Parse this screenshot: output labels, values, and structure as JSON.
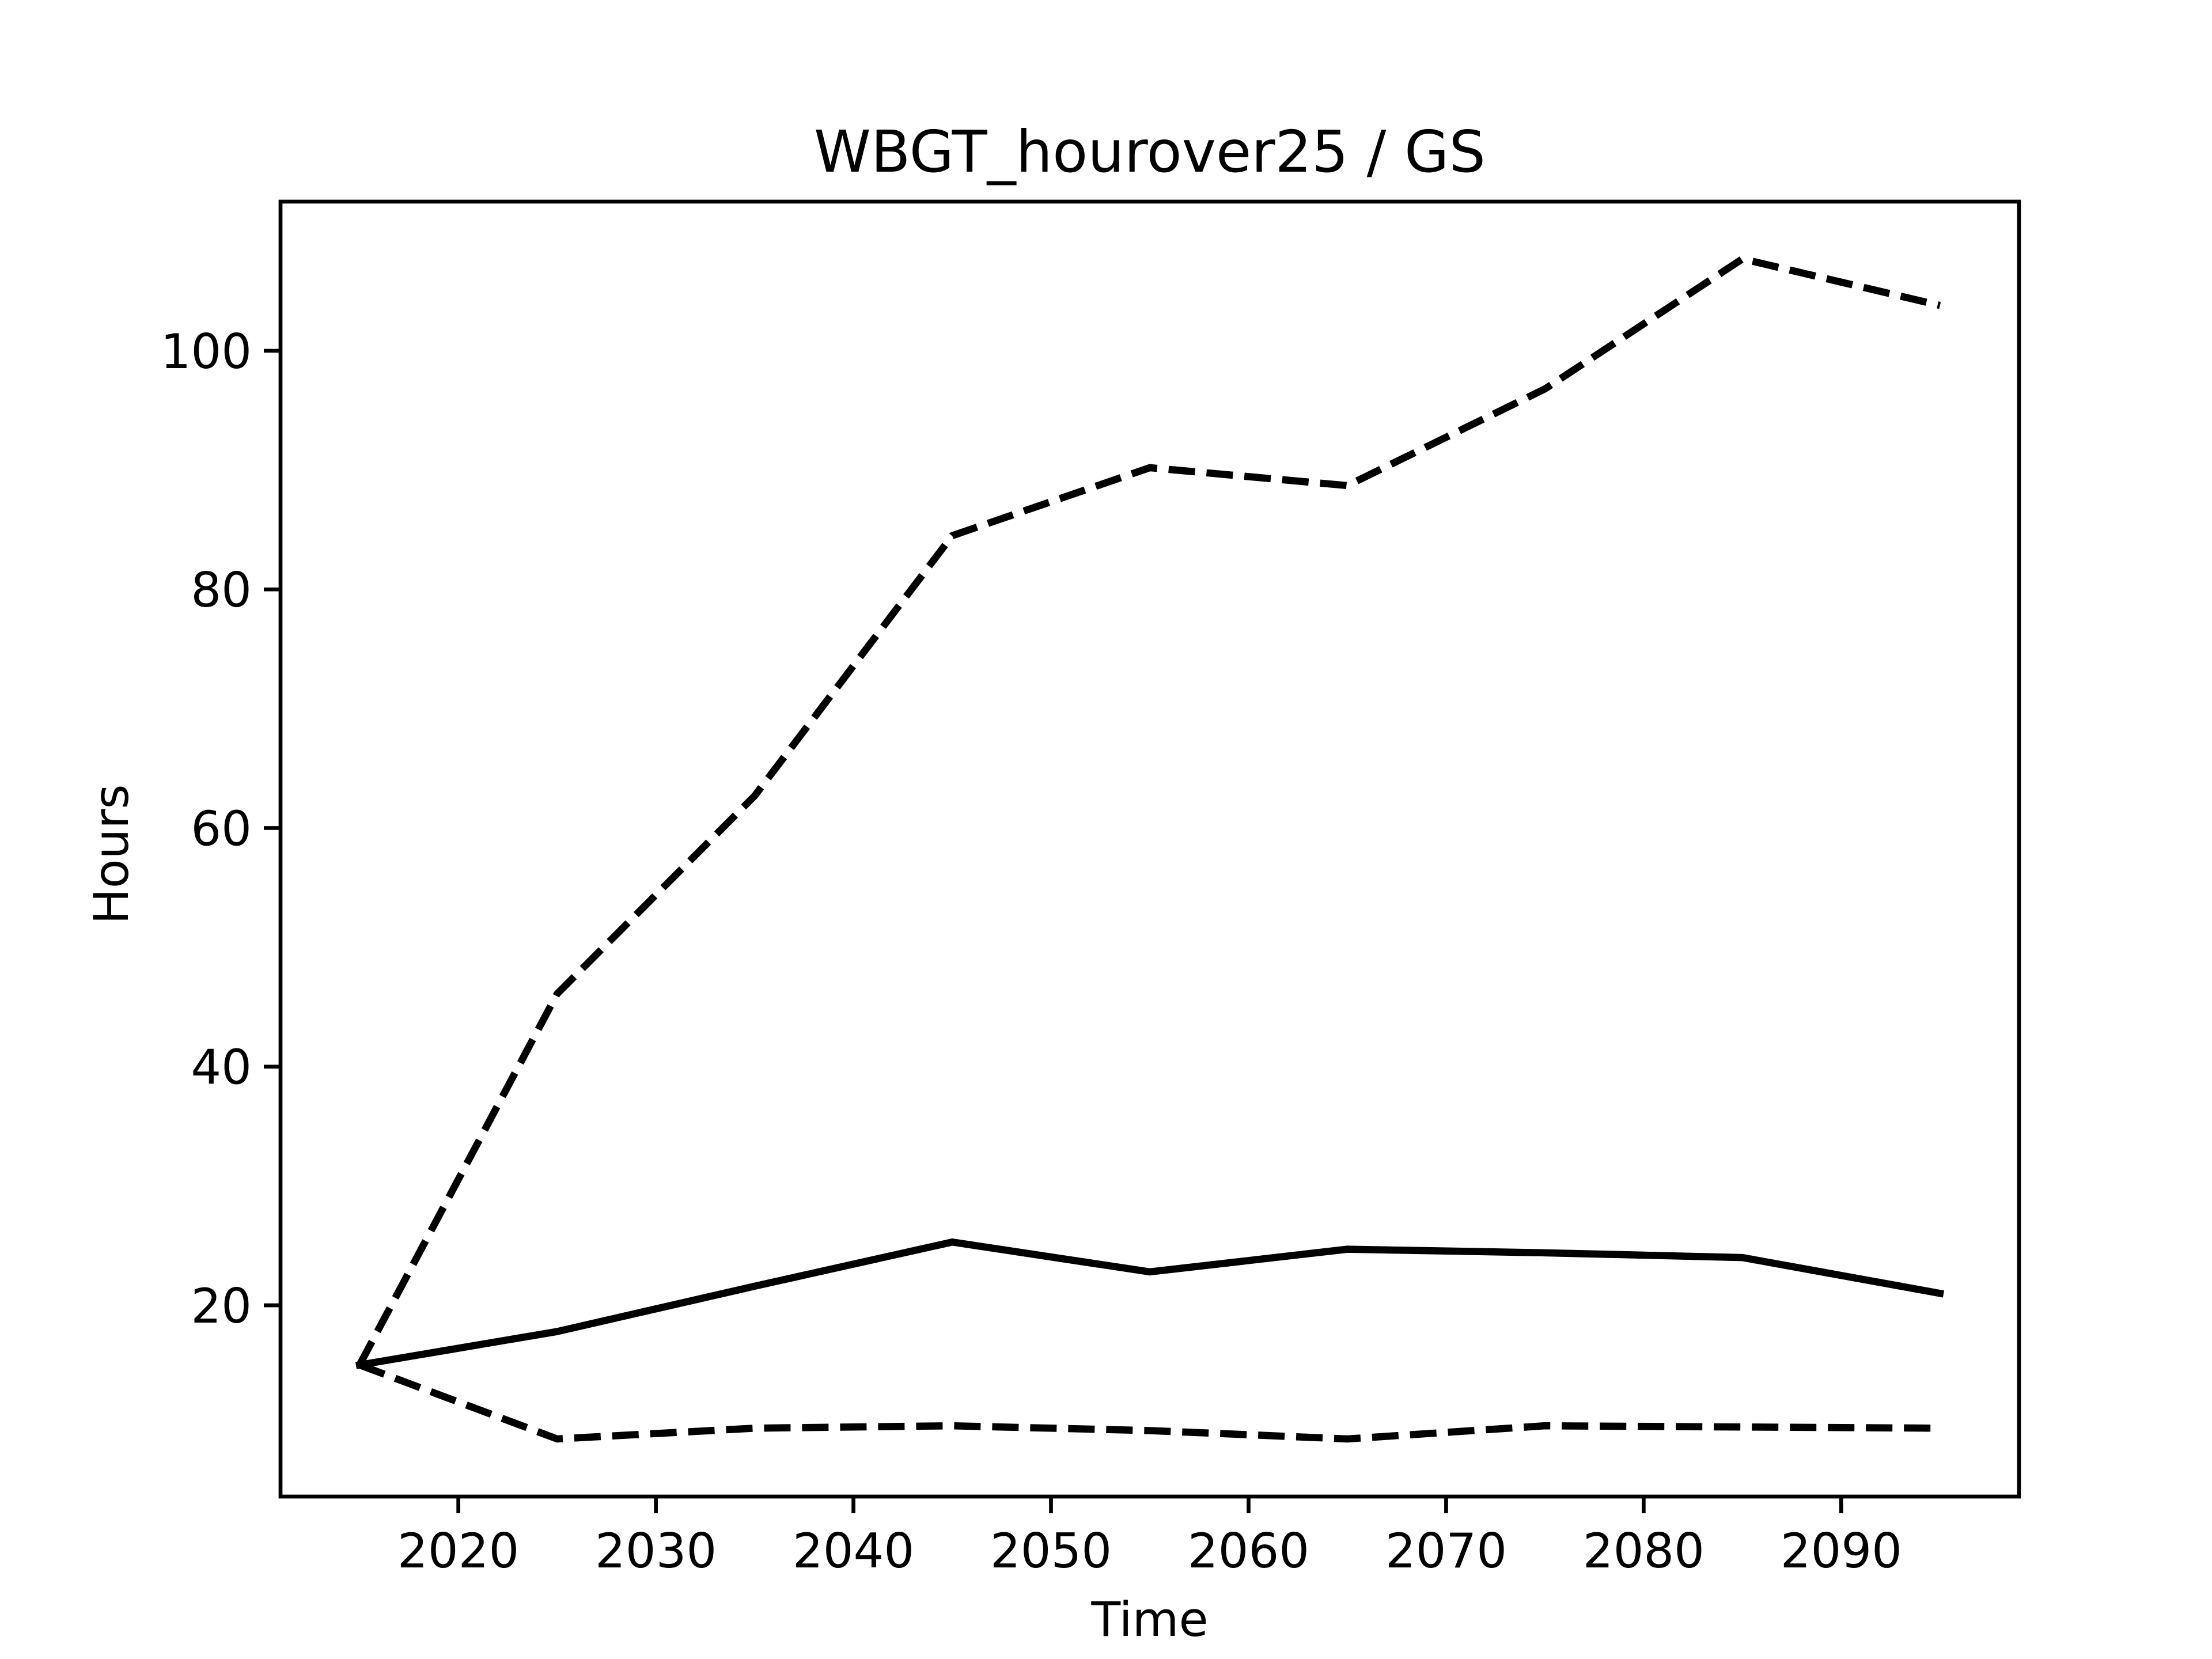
{
  "chart_data": {
    "type": "line",
    "title": "WBGT_hourover25 / GS",
    "x_label": "Time",
    "y_label": "Hours",
    "x": [
      2015,
      2025,
      2035,
      2045,
      2055,
      2065,
      2075,
      2085,
      2095
    ],
    "series": [
      {
        "color": "#000000",
        "linestyle": "solid",
        "values": [
          15.0,
          17.8,
          21.6,
          25.3,
          22.8,
          24.7,
          24.4,
          24.0,
          21.0
        ]
      },
      {
        "color": "#000000",
        "linestyle": "dashed",
        "values": [
          15.0,
          46.1,
          62.7,
          84.5,
          90.2,
          88.7,
          96.8,
          107.7,
          103.8
        ]
      },
      {
        "color": "#000000",
        "linestyle": "dashed",
        "values": [
          15.0,
          8.8,
          9.7,
          9.9,
          9.5,
          8.8,
          9.9,
          9.8,
          9.7
        ]
      }
    ],
    "xlim": [
      2011,
      2099
    ],
    "ylim": [
      3.97,
      112.5
    ],
    "xticks": [
      2020,
      2030,
      2040,
      2050,
      2060,
      2070,
      2080,
      2090
    ],
    "yticks": [
      20,
      40,
      60,
      80,
      100
    ],
    "grid": false
  }
}
